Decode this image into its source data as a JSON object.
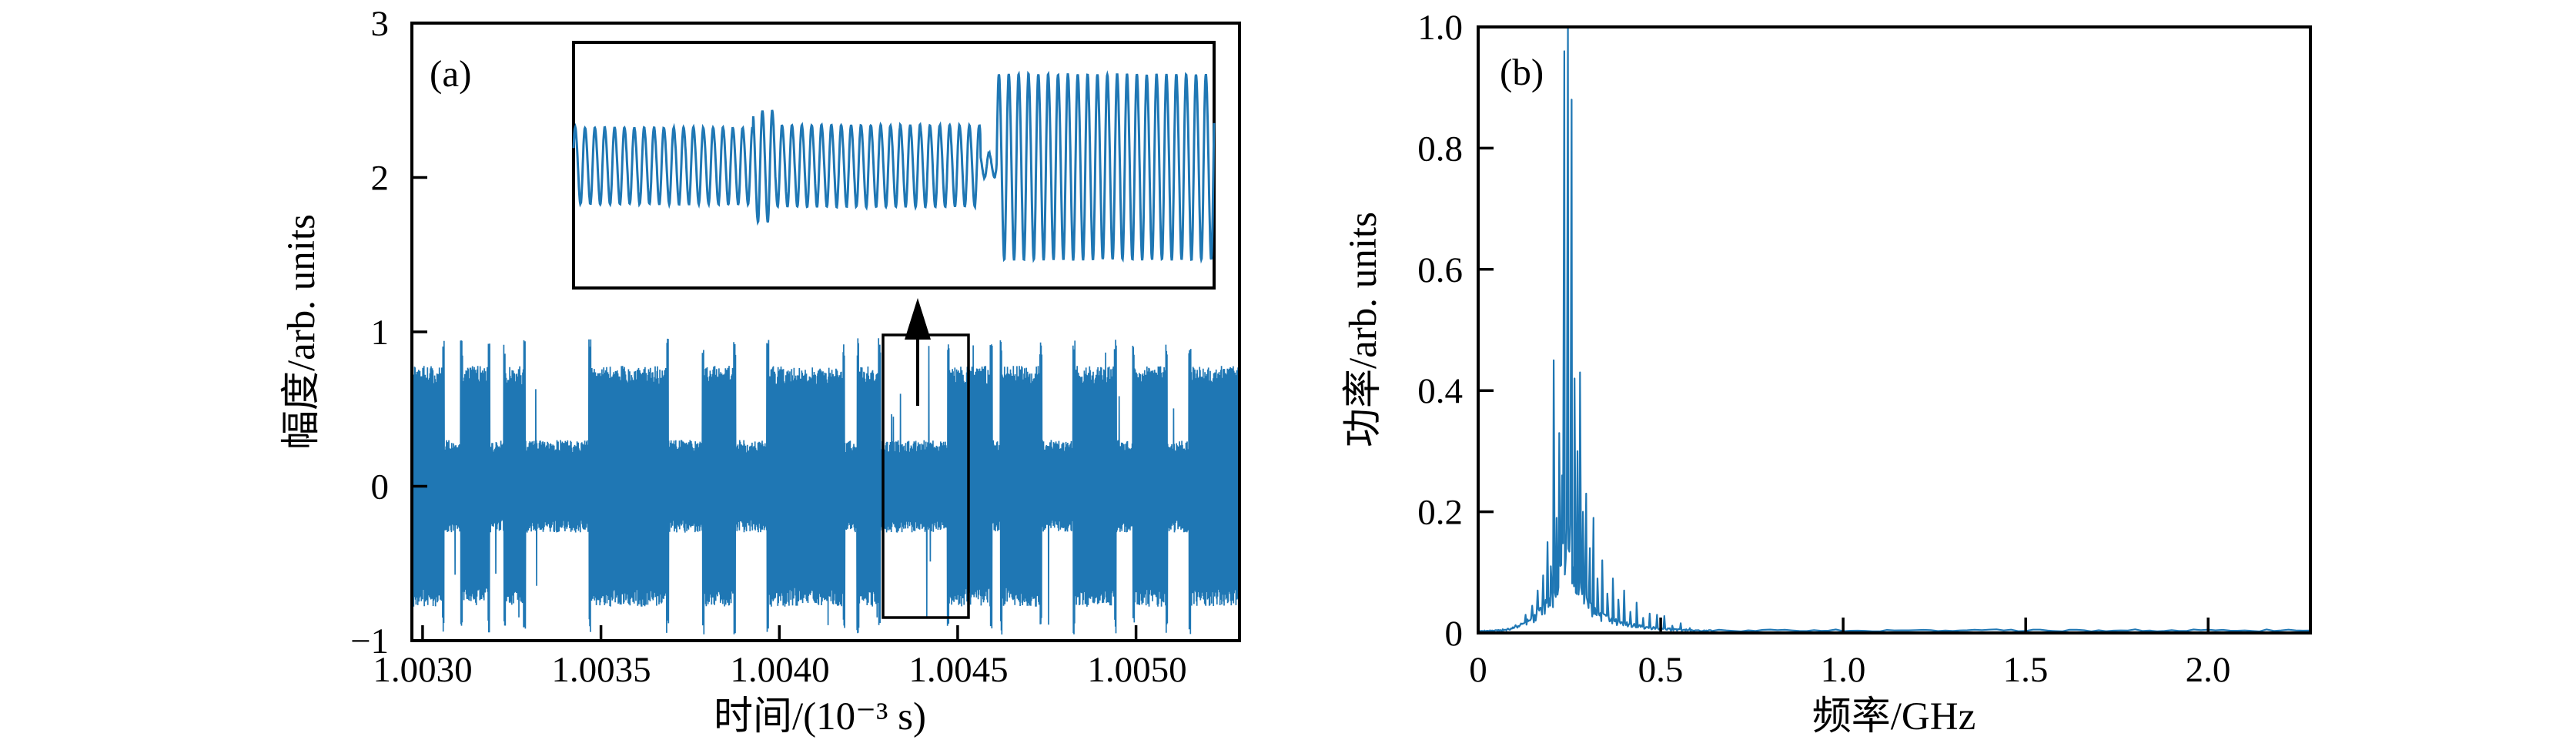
{
  "figure": {
    "background": "#ffffff",
    "axis_color": "#000000",
    "line_color": "#1f77b4"
  },
  "chart_data": [
    {
      "id": "panel-a-timeseries",
      "type": "line",
      "panel_label": "(a)",
      "title": "",
      "xlabel": "时间/(10⁻³ s)",
      "ylabel": "幅度/arb. units",
      "xlim": [
        1.00297,
        1.00529
      ],
      "ylim": [
        -1,
        3
      ],
      "xticks": [
        1.003,
        1.0035,
        1.004,
        1.0045,
        1.005
      ],
      "xtick_labels": [
        "1.0030",
        "1.0035",
        "1.0040",
        "1.0045",
        "1.0050"
      ],
      "yticks": [
        3,
        2,
        1,
        0,
        -1
      ],
      "ytick_labels": [
        "3",
        "2",
        "1",
        "0",
        "−1"
      ],
      "grid": false,
      "legend": null,
      "line_color": "#1f77b4",
      "description": "Chaotic laser intensity time series: random telegraph bursts between a low-amplitude state (±0.30) and a high-amplitude state (±0.78) with sharp spikes to ±0.96.",
      "signal_envelope": {
        "high_amplitude": 0.78,
        "low_amplitude": 0.3,
        "spike_amplitude": 0.96,
        "segments": [
          [
            0.0,
            0.038,
            "high"
          ],
          [
            0.038,
            0.06,
            "low"
          ],
          [
            0.06,
            0.093,
            "high"
          ],
          [
            0.093,
            0.112,
            "low"
          ],
          [
            0.112,
            0.136,
            "high"
          ],
          [
            0.136,
            0.215,
            "low"
          ],
          [
            0.215,
            0.309,
            "high"
          ],
          [
            0.309,
            0.352,
            "low"
          ],
          [
            0.352,
            0.39,
            "high"
          ],
          [
            0.39,
            0.43,
            "low"
          ],
          [
            0.43,
            0.522,
            "high"
          ],
          [
            0.522,
            0.539,
            "low"
          ],
          [
            0.539,
            0.565,
            "high"
          ],
          [
            0.565,
            0.648,
            "low"
          ],
          [
            0.648,
            0.7,
            "high"
          ],
          [
            0.7,
            0.712,
            "low"
          ],
          [
            0.712,
            0.76,
            "high"
          ],
          [
            0.76,
            0.8,
            "low"
          ],
          [
            0.8,
            0.85,
            "high"
          ],
          [
            0.85,
            0.872,
            "low"
          ],
          [
            0.872,
            0.912,
            "high"
          ],
          [
            0.912,
            0.94,
            "low"
          ],
          [
            0.94,
            1.0,
            "high"
          ]
        ]
      },
      "zoom_box": {
        "t0": 1.00429,
        "t1": 1.00453,
        "y0": -0.85,
        "y1": 0.98
      },
      "arrow": {
        "t": 1.00439,
        "y_tail": 0.52,
        "y_tip": 1.22
      }
    },
    {
      "id": "panel-a-inset",
      "type": "line",
      "parent": "panel-a-timeseries",
      "description": "Magnified waveform of the boxed region: quasi-sinusoidal oscillation, small amplitude first, abrupt jump to large amplitude at ~2/3 of the window.",
      "xlim": [
        0,
        1
      ],
      "ylim": [
        -1,
        1
      ],
      "carrier_cycles": 65,
      "line_color": "#1f77b4",
      "amplitude_sections": [
        [
          0.0,
          0.28,
          0.31
        ],
        [
          0.28,
          0.315,
          0.45
        ],
        [
          0.315,
          0.635,
          0.33
        ],
        [
          0.635,
          0.66,
          0.1
        ],
        [
          0.66,
          1.0,
          0.75
        ]
      ]
    },
    {
      "id": "panel-b-spectrum",
      "type": "line",
      "panel_label": "(b)",
      "title": "",
      "xlabel": "频率/GHz",
      "ylabel": "功率/arb. units",
      "xlim": [
        0,
        2.28
      ],
      "ylim": [
        0,
        1
      ],
      "xticks": [
        0,
        0.5,
        1.0,
        1.5,
        2.0
      ],
      "xtick_labels": [
        "0",
        "0.5",
        "1.0",
        "1.5",
        "2.0"
      ],
      "yticks": [
        1.0,
        0.8,
        0.6,
        0.4,
        0.2,
        0
      ],
      "ytick_labels": [
        "1.0",
        "0.8",
        "0.6",
        "0.4",
        "0.2",
        "0"
      ],
      "grid": false,
      "legend": null,
      "line_color": "#1f77b4",
      "peak_frequency_ghz": 0.245,
      "baseline_power": 0.004,
      "pedestal_points": [
        [
          0,
          0.003
        ],
        [
          0.05,
          0.004
        ],
        [
          0.08,
          0.006
        ],
        [
          0.11,
          0.012
        ],
        [
          0.14,
          0.02
        ],
        [
          0.17,
          0.035
        ],
        [
          0.2,
          0.055
        ],
        [
          0.22,
          0.08
        ],
        [
          0.235,
          0.13
        ],
        [
          0.246,
          0.19
        ],
        [
          0.256,
          0.13
        ],
        [
          0.27,
          0.085
        ],
        [
          0.285,
          0.06
        ],
        [
          0.3,
          0.045
        ],
        [
          0.33,
          0.03
        ],
        [
          0.36,
          0.022
        ],
        [
          0.4,
          0.016
        ],
        [
          0.44,
          0.011
        ],
        [
          0.48,
          0.008
        ],
        [
          0.53,
          0.006
        ],
        [
          0.6,
          0.004
        ],
        [
          0.7,
          0.0035
        ],
        [
          0.9,
          0.003
        ],
        [
          1.2,
          0.003
        ],
        [
          1.6,
          0.003
        ],
        [
          2.0,
          0.003
        ],
        [
          2.28,
          0.003
        ]
      ],
      "spikes": [
        [
          0.13,
          0.03
        ],
        [
          0.148,
          0.045
        ],
        [
          0.163,
          0.07
        ],
        [
          0.178,
          0.095
        ],
        [
          0.19,
          0.15
        ],
        [
          0.199,
          0.11
        ],
        [
          0.207,
          0.45
        ],
        [
          0.215,
          0.19
        ],
        [
          0.222,
          0.33
        ],
        [
          0.23,
          0.26
        ],
        [
          0.236,
          0.96
        ],
        [
          0.246,
          1.0
        ],
        [
          0.256,
          0.88
        ],
        [
          0.264,
          0.42
        ],
        [
          0.272,
          0.3
        ],
        [
          0.279,
          0.43
        ],
        [
          0.287,
          0.2
        ],
        [
          0.296,
          0.23
        ],
        [
          0.306,
          0.14
        ],
        [
          0.316,
          0.19
        ],
        [
          0.327,
          0.09
        ],
        [
          0.34,
          0.12
        ],
        [
          0.354,
          0.065
        ],
        [
          0.369,
          0.09
        ],
        [
          0.384,
          0.055
        ],
        [
          0.4,
          0.07
        ],
        [
          0.417,
          0.035
        ],
        [
          0.434,
          0.05
        ],
        [
          0.452,
          0.025
        ],
        [
          0.47,
          0.032
        ],
        [
          0.49,
          0.03
        ],
        [
          0.51,
          0.028
        ],
        [
          0.532,
          0.012
        ],
        [
          0.555,
          0.016
        ],
        [
          0.58,
          0.008
        ]
      ]
    }
  ]
}
